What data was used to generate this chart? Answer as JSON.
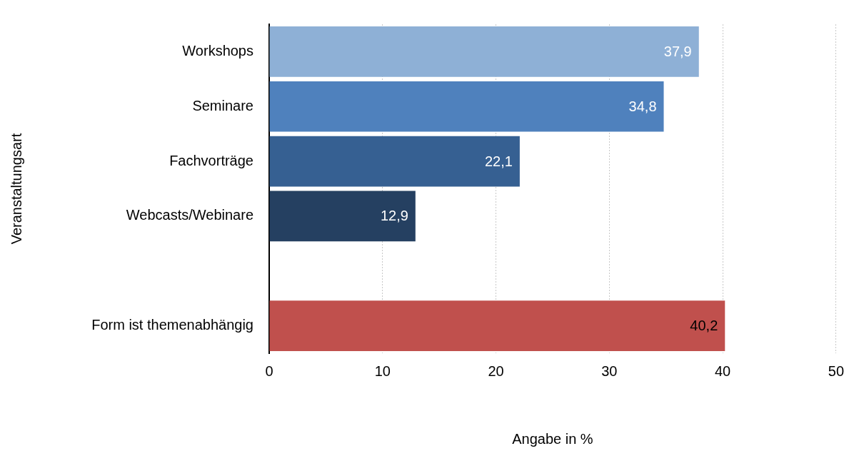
{
  "chart_data": {
    "type": "bar",
    "orientation": "horizontal",
    "categories": [
      "Workshops",
      "Seminare",
      "Fachvorträge",
      "Webcasts/Webinare",
      null,
      "Form ist themenabhängig"
    ],
    "values": [
      37.9,
      34.8,
      22.1,
      12.9,
      null,
      40.2
    ],
    "colors": [
      "#8eb0d6",
      "#4f81bd",
      "#366092",
      "#254061",
      "#254061",
      "#c0504d"
    ],
    "value_labels": [
      "37,9",
      "34,8",
      "22,1",
      "12,9",
      null,
      "40,2"
    ],
    "xlim": [
      0,
      50
    ],
    "xticks": [
      0,
      10,
      20,
      30,
      40,
      50
    ],
    "xlabel": "Angabe in %",
    "ylabel": "Veranstaltungsart",
    "grid": "x",
    "legend": false
  }
}
